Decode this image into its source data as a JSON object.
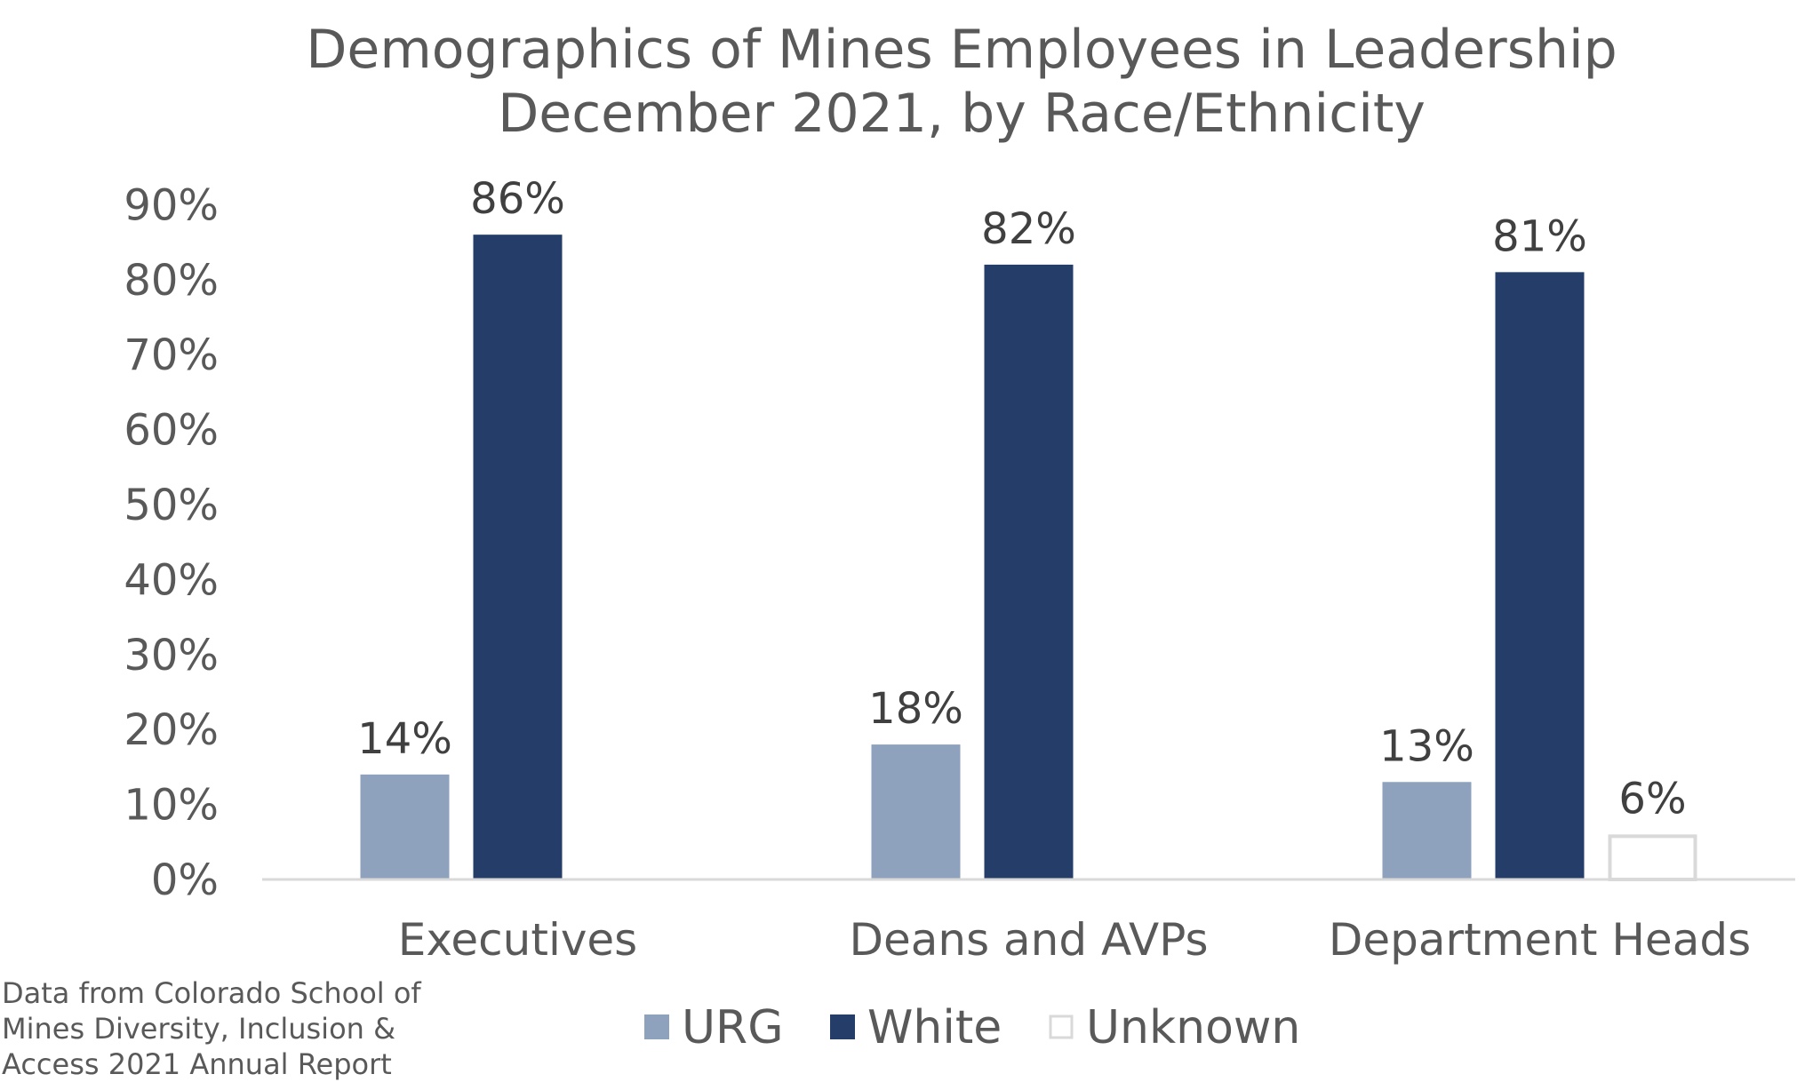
{
  "chart_data": {
    "type": "bar",
    "title": "Demographics of Mines Employees in Leadership",
    "subtitle": "December 2021, by Race/Ethnicity",
    "categories": [
      "Executives",
      "Deans and AVPs",
      "Department Heads"
    ],
    "series": [
      {
        "name": "URG",
        "values": [
          14,
          18,
          13
        ],
        "labels": [
          "14%",
          "18%",
          "13%"
        ],
        "color": "#8fa2bd"
      },
      {
        "name": "White",
        "values": [
          86,
          82,
          81
        ],
        "labels": [
          "86%",
          "82%",
          "81%"
        ],
        "color": "#243e69"
      },
      {
        "name": "Unknown",
        "values": [
          null,
          null,
          6
        ],
        "labels": [
          "",
          "",
          "6%"
        ],
        "color": "#ffffff",
        "stroke": "#d9d9d9"
      }
    ],
    "ylim": [
      0,
      90
    ],
    "yticks": [
      0,
      10,
      20,
      30,
      40,
      50,
      60,
      70,
      80,
      90
    ],
    "ytick_labels": [
      "0%",
      "10%",
      "20%",
      "30%",
      "40%",
      "50%",
      "60%",
      "70%",
      "80%",
      "90%"
    ],
    "xlabel": "",
    "ylabel": "",
    "grid": false,
    "legend_position": "bottom"
  },
  "source_note": {
    "lines": [
      "Data from Colorado School of",
      "Mines Diversity, Inclusion &",
      "Access 2021 Annual Report"
    ]
  }
}
